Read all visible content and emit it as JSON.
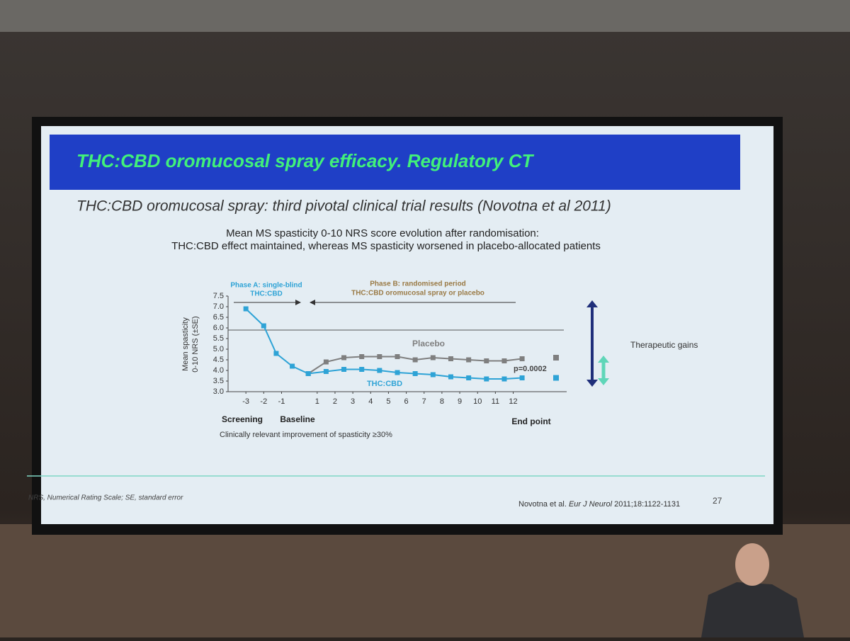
{
  "slide": {
    "title": "THC:CBD oromucosal spray efficacy. Regulatory CT",
    "subtitle": "THC:CBD oromucosal spray: third pivotal clinical trial results (Novotna et al 2011)",
    "caption": [
      "Mean MS spasticity 0-10 NRS score evolution after randomisation:",
      "THC:CBD effect maintained, whereas MS spasticity worsened in placebo-allocated patients"
    ],
    "footnote": "NRS, Numerical Rating Scale; SE, standard error",
    "citation": {
      "authors": "Novotna et al.",
      "journal": "Eur J Neurol",
      "details": "2011;18:1122-1131"
    },
    "page_number": "27"
  },
  "chart_data": {
    "type": "line",
    "y_label": [
      "Mean spasticity",
      "0-10 NRS (±SE)"
    ],
    "phase_a": [
      "Phase A: single-blind",
      "THC:CBD"
    ],
    "phase_b": [
      "Phase B: randomised period",
      "THC:CBD oromucosal spray or placebo"
    ],
    "x_group_labels": [
      "Screening",
      "Baseline"
    ],
    "p_value": "p=0.0002",
    "threshold_label": "Clinically relevant improvement of spasticity ≥30%",
    "gain_label": "Therapeutic gains",
    "xlim": [
      -4,
      15
    ],
    "ylim": [
      3.0,
      7.5
    ],
    "xticks": [
      -3,
      -2,
      -1,
      1,
      2,
      3,
      4,
      5,
      6,
      7,
      8,
      9,
      10,
      11,
      12
    ],
    "yticks": [
      {
        "value": 3,
        "label": "3.0"
      },
      3.5,
      {
        "value": 4,
        "label": "4.0"
      },
      4.5,
      {
        "value": 5,
        "label": "5.0"
      },
      5.5,
      {
        "value": 6,
        "label": "6.0"
      },
      6.5,
      {
        "value": 7,
        "label": "7.0"
      },
      7.5
    ],
    "reference_line": 5.9,
    "series": [
      {
        "name": "THC:CBD",
        "color": "#2ea3d6",
        "x": [
          -3,
          -2,
          -1.3,
          -0.4,
          0.5,
          1.5,
          2.5,
          3.5,
          4.5,
          5.5,
          6.5,
          7.5,
          8.5,
          9.5,
          10.5,
          11.5,
          12.5
        ],
        "values": [
          6.9,
          6.1,
          4.8,
          4.2,
          3.85,
          3.95,
          4.05,
          4.05,
          4.0,
          3.9,
          3.85,
          3.8,
          3.7,
          3.65,
          3.6,
          3.6,
          3.65
        ]
      },
      {
        "name": "Placebo",
        "color": "#7f7f7f",
        "x": [
          0.5,
          1.5,
          2.5,
          3.5,
          4.5,
          5.5,
          6.5,
          7.5,
          8.5,
          9.5,
          10.5,
          11.5,
          12.5
        ],
        "values": [
          3.85,
          4.4,
          4.6,
          4.65,
          4.65,
          4.65,
          4.5,
          4.6,
          4.55,
          4.5,
          4.45,
          4.45,
          4.55
        ]
      }
    ],
    "end_point": {
      "label": "End point",
      "values": [
        3.65,
        4.6
      ]
    }
  }
}
